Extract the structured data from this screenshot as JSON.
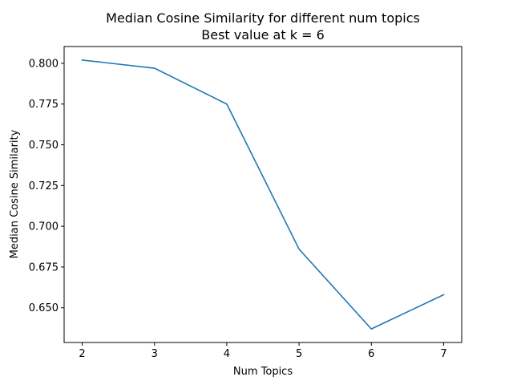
{
  "chart_data": {
    "type": "line",
    "title": "Median Cosine Similarity for different num topics",
    "subtitle": "Best value at k = 6",
    "xlabel": "Num Topics",
    "ylabel": "Median Cosine Similarity",
    "x": [
      2,
      3,
      4,
      5,
      6,
      7
    ],
    "series": [
      {
        "values": [
          0.802,
          0.797,
          0.775,
          0.686,
          0.637,
          0.658
        ]
      }
    ],
    "xticks": [
      "2",
      "3",
      "4",
      "5",
      "6",
      "7"
    ],
    "yticks": [
      "0.650",
      "0.675",
      "0.700",
      "0.725",
      "0.750",
      "0.775",
      "0.800"
    ],
    "xlim": [
      1.75,
      7.25
    ],
    "ylim": [
      0.6287,
      0.8103
    ],
    "grid": false,
    "colors": {
      "line": "#1f77b4",
      "axis": "#000000",
      "background": "#ffffff"
    }
  }
}
